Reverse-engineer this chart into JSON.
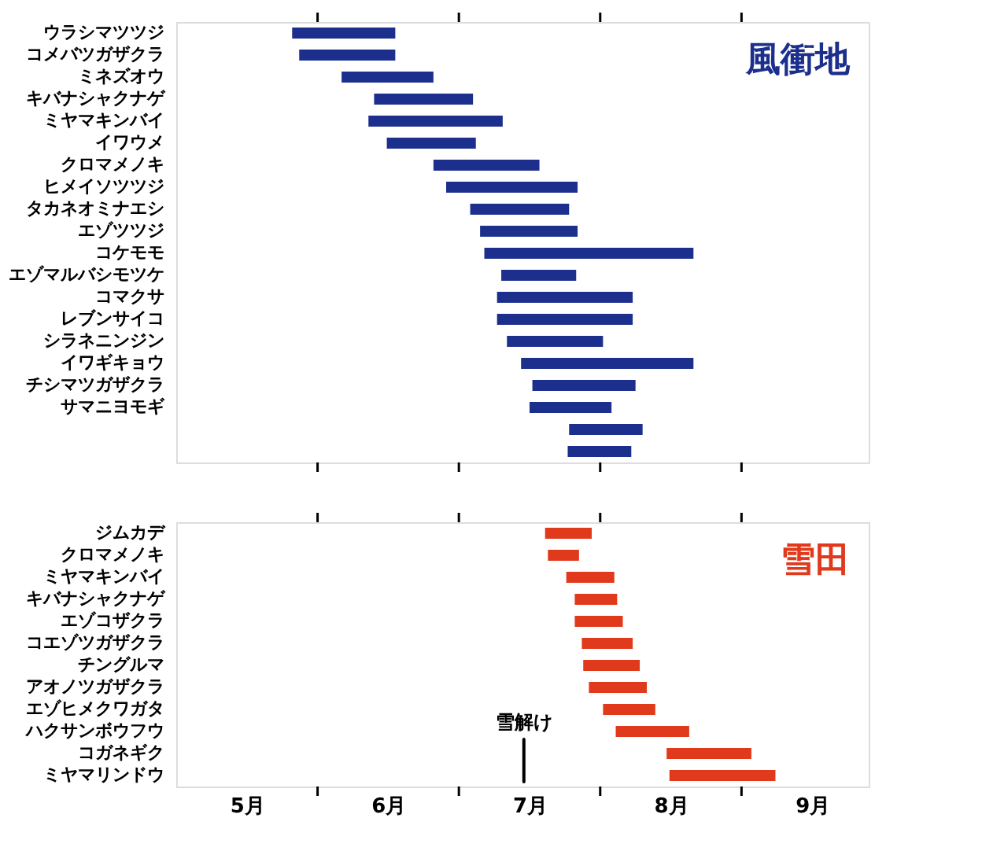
{
  "chart_data": [
    {
      "type": "bar",
      "orientation": "horizontal",
      "tick_labels": "y",
      "categories": [
        "ウラシマツツジ",
        "コメバツガザクラ",
        "ミネズオウ",
        "キバナシャクナゲ",
        "ミヤマキンバイ",
        "イワウメ",
        "クロマメノキ",
        "ヒメイソツツジ",
        "タカネオミナエシ",
        "エゾツツジ",
        "コケモモ",
        "エゾマルバシモツケ",
        "コマクサ",
        "レブンサイコ",
        "シラネニンジン",
        "イワギキョウ",
        "チシマツガザクラ",
        "サマニヨモギ",
        null,
        null
      ],
      "series": [
        {
          "name": "風衝地",
          "color": "#1c2f8c",
          "base": [
            5.32,
            5.37,
            5.67,
            5.9,
            5.86,
            5.99,
            6.32,
            6.41,
            6.58,
            6.65,
            6.68,
            6.8,
            6.77,
            6.77,
            6.84,
            6.94,
            7.02,
            7.0,
            7.28,
            7.27
          ],
          "values": [
            0.73,
            0.68,
            0.65,
            0.7,
            0.95,
            0.63,
            0.75,
            0.93,
            0.7,
            0.69,
            1.48,
            0.53,
            0.96,
            0.96,
            0.68,
            1.22,
            0.73,
            0.58,
            0.52,
            0.45
          ]
        }
      ],
      "xlim": [
        4.5,
        9.4
      ],
      "xticks": [
        {
          "value": 5.5,
          "label": null
        },
        {
          "value": 6.5,
          "label": null
        },
        {
          "value": 7.5,
          "label": null
        },
        {
          "value": 8.5,
          "label": null
        }
      ]
    },
    {
      "type": "bar",
      "orientation": "horizontal",
      "categories": [
        "ジムカデ",
        "クロマメノキ",
        "ミヤマキンバイ",
        "キバナシャクナゲ",
        "エゾコザクラ",
        "コエゾツガザクラ",
        "チングルマ",
        "アオノツガザクラ",
        "エゾヒメクワガタ",
        "ハクサンボウフウ",
        "コガネギク",
        "ミヤマリンドウ"
      ],
      "series": [
        {
          "name": "雪田",
          "color": "#e0391c",
          "base": [
            7.11,
            7.13,
            7.26,
            7.32,
            7.32,
            7.37,
            7.38,
            7.42,
            7.52,
            7.61,
            7.97,
            7.99
          ],
          "values": [
            0.33,
            0.22,
            0.34,
            0.3,
            0.34,
            0.36,
            0.4,
            0.41,
            0.37,
            0.52,
            0.6,
            0.75
          ]
        }
      ],
      "xlim": [
        4.5,
        9.4
      ],
      "xticks": [
        {
          "value": 5,
          "label": "5月"
        },
        {
          "value": 5.5,
          "label": null
        },
        {
          "value": 6,
          "label": "6月"
        },
        {
          "value": 6.5,
          "label": null
        },
        {
          "value": 7,
          "label": "7月"
        },
        {
          "value": 7.5,
          "label": null
        },
        {
          "value": 8,
          "label": "8月"
        },
        {
          "value": 8.5,
          "label": null
        },
        {
          "value": 9,
          "label": "9月"
        }
      ],
      "ref_lines": [
        {
          "axis": "x",
          "value": 6.96,
          "label": "雪解け",
          "color": "#000000"
        }
      ]
    }
  ]
}
